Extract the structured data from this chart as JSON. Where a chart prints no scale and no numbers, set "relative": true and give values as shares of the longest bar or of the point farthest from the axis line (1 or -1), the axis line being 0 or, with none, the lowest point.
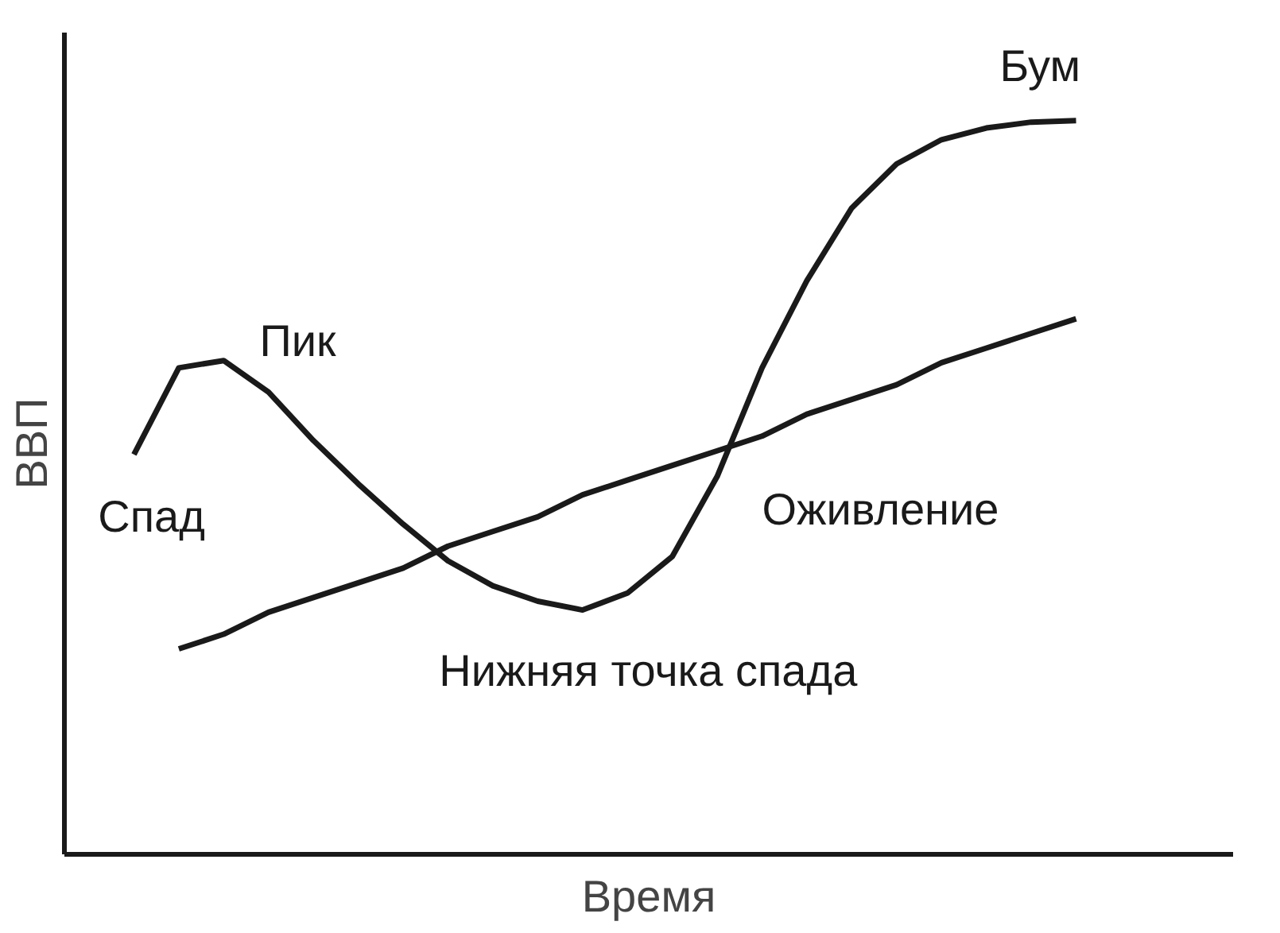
{
  "chart_data": {
    "type": "line",
    "relative": true,
    "xlabel": "Время",
    "ylabel": "ВВП",
    "grid": false,
    "marker": "none",
    "line_style": "solid",
    "categories": [
      null,
      null,
      null,
      null,
      null,
      null,
      null,
      null,
      null,
      null,
      null,
      null,
      null,
      null,
      null,
      null,
      null,
      null,
      null,
      null,
      null,
      null
    ],
    "series": [
      {
        "color": "#1a1a1a",
        "values": [
          0.545,
          0.663,
          0.673,
          0.63,
          0.564,
          0.505,
          0.45,
          0.4,
          0.366,
          0.345,
          0.333,
          0.356,
          0.406,
          0.515,
          0.663,
          0.782,
          0.881,
          0.941,
          0.974,
          0.99,
          0.998,
          1
        ]
      },
      {
        "color": "#1a1a1a",
        "values": [
          null,
          0.28,
          0.3,
          0.33,
          0.35,
          0.37,
          0.39,
          0.42,
          0.44,
          0.46,
          0.49,
          0.51,
          0.53,
          0.55,
          0.57,
          0.6,
          0.62,
          0.64,
          0.67,
          0.69,
          0.71,
          0.73
        ]
      }
    ],
    "annotations": [
      "Пик",
      "Спад",
      "Нижняя точка спада",
      "Оживление",
      "Бум"
    ]
  }
}
